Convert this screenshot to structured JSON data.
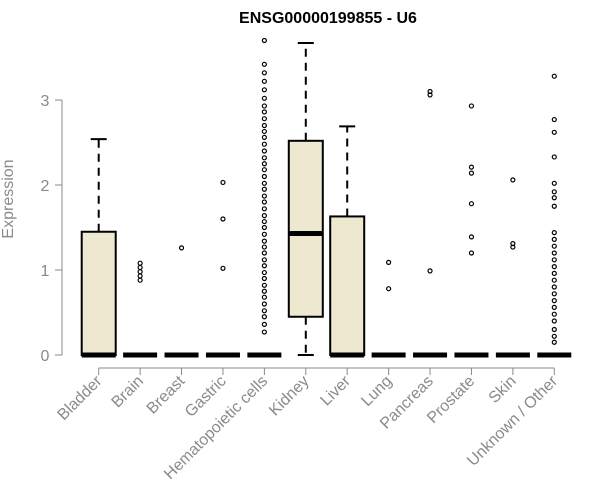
{
  "chart_data": {
    "type": "boxplot",
    "title": "ENSG00000199855 - U6",
    "ylabel": "Expression",
    "xlabel": "",
    "ylim": [
      0,
      3.7
    ],
    "y_ticks": [
      0,
      1,
      2,
      3
    ],
    "box_fill": "#ede8cf",
    "categories": [
      {
        "name": "Bladder",
        "min": 0,
        "q1": 0,
        "median": 0,
        "q3": 1.45,
        "max": 2.54,
        "outliers": []
      },
      {
        "name": "Brain",
        "min": 0,
        "q1": 0,
        "median": 0,
        "q3": 0,
        "max": 0,
        "outliers": [
          0.88,
          0.93,
          0.98,
          1.03,
          1.08
        ]
      },
      {
        "name": "Breast",
        "min": 0,
        "q1": 0,
        "median": 0,
        "q3": 0,
        "max": 0,
        "outliers": [
          1.26
        ]
      },
      {
        "name": "Gastric",
        "min": 0,
        "q1": 0,
        "median": 0,
        "q3": 0,
        "max": 0,
        "outliers": [
          1.02,
          1.6,
          2.03
        ]
      },
      {
        "name": "Hematopoietic cells",
        "min": 0,
        "q1": 0,
        "median": 0,
        "q3": 0,
        "max": 0,
        "outliers": [
          0.27,
          0.36,
          0.45,
          0.52,
          0.6,
          0.68,
          0.75,
          0.82,
          0.9,
          0.97,
          1.05,
          1.12,
          1.2,
          1.27,
          1.34,
          1.42,
          1.5,
          1.57,
          1.64,
          1.72,
          1.8,
          1.87,
          1.95,
          2.02,
          2.1,
          2.18,
          2.25,
          2.32,
          2.4,
          2.48,
          2.56,
          2.63,
          2.7,
          2.78,
          2.86,
          2.93,
          3.02,
          3.12,
          3.22,
          3.32,
          3.42,
          3.7
        ]
      },
      {
        "name": "Kidney",
        "min": 0,
        "q1": 0.45,
        "median": 1.43,
        "q3": 2.52,
        "max": 3.67,
        "outliers": []
      },
      {
        "name": "Liver",
        "min": 0,
        "q1": 0,
        "median": 0,
        "q3": 1.63,
        "max": 2.69,
        "outliers": []
      },
      {
        "name": "Lung",
        "min": 0,
        "q1": 0,
        "median": 0,
        "q3": 0,
        "max": 0,
        "outliers": [
          0.78,
          1.09
        ]
      },
      {
        "name": "Pancreas",
        "min": 0,
        "q1": 0,
        "median": 0,
        "q3": 0,
        "max": 0,
        "outliers": [
          0.99,
          3.06,
          3.1
        ]
      },
      {
        "name": "Prostate",
        "min": 0,
        "q1": 0,
        "median": 0,
        "q3": 0,
        "max": 0,
        "outliers": [
          1.2,
          1.39,
          1.78,
          2.14,
          2.21,
          2.93
        ]
      },
      {
        "name": "Skin",
        "min": 0,
        "q1": 0,
        "median": 0,
        "q3": 0,
        "max": 0,
        "outliers": [
          1.27,
          1.31,
          2.06
        ]
      },
      {
        "name": "Unknown / Other",
        "min": 0,
        "q1": 0,
        "median": 0,
        "q3": 0,
        "max": 0,
        "outliers": [
          0.15,
          0.22,
          0.3,
          0.4,
          0.48,
          0.56,
          0.64,
          0.72,
          0.8,
          0.88,
          0.96,
          1.04,
          1.12,
          1.2,
          1.28,
          1.36,
          1.44,
          1.75,
          1.85,
          1.92,
          2.02,
          2.33,
          2.62,
          2.77,
          3.28
        ]
      }
    ]
  }
}
